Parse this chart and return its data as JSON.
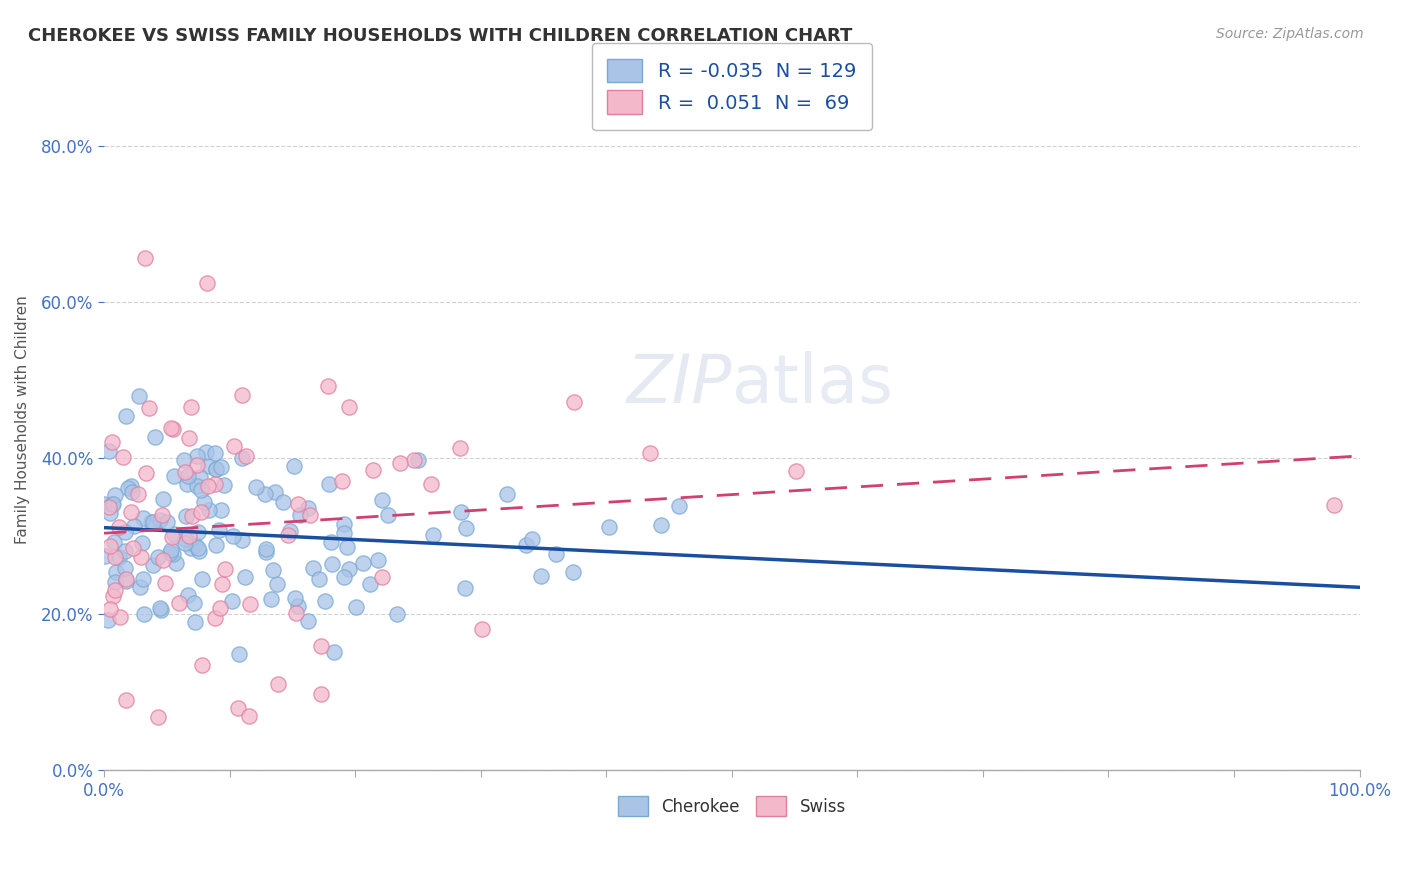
{
  "title": "CHEROKEE VS SWISS FAMILY HOUSEHOLDS WITH CHILDREN CORRELATION CHART",
  "source": "Source: ZipAtlas.com",
  "ylabel": "Family Households with Children",
  "xlim": [
    0.0,
    1.0
  ],
  "ylim": [
    0.0,
    0.9
  ],
  "cherokee_color": "#aac4e8",
  "cherokee_edge_color": "#7aaad4",
  "swiss_color": "#f4b8cb",
  "swiss_edge_color": "#e080a0",
  "cherokee_line_color": "#1a4fa0",
  "swiss_line_color": "#d04070",
  "R_cherokee": -0.035,
  "N_cherokee": 129,
  "R_swiss": 0.051,
  "N_swiss": 69,
  "watermark": "ZIPatlas",
  "background_color": "#ffffff",
  "grid_color": "#cccccc"
}
